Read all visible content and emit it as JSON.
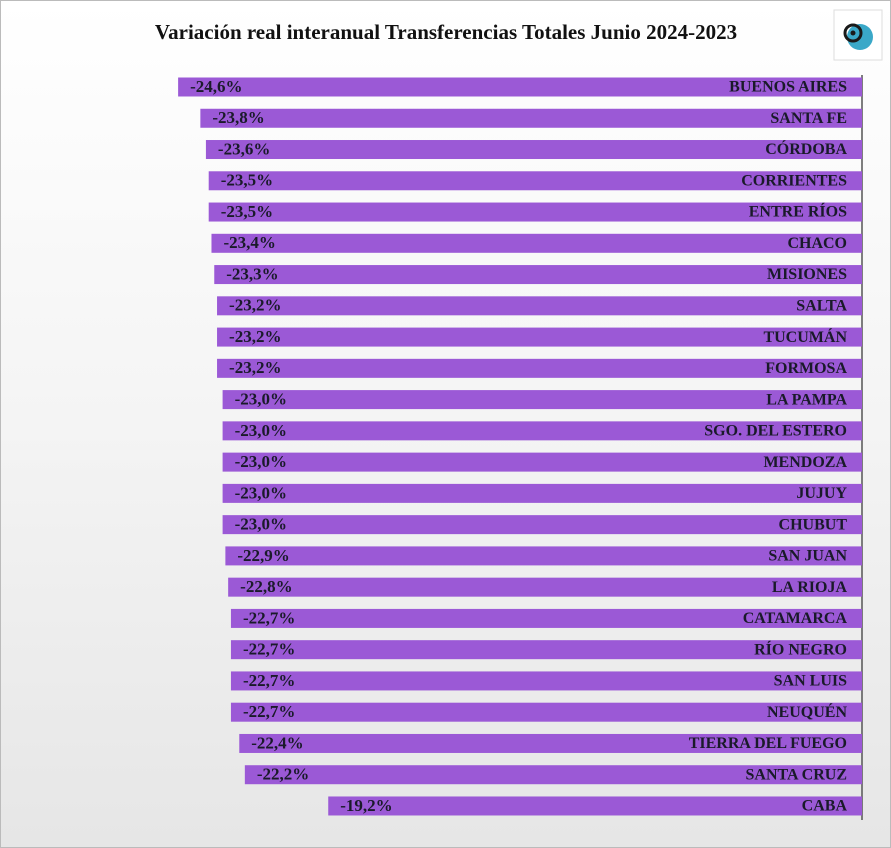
{
  "chart_data": {
    "type": "bar",
    "orientation": "horizontal",
    "title": "Variación real interanual Transferencias Totales Junio 2024-2023",
    "categories": [
      "BUENOS AIRES",
      "SANTA FE",
      "CÓRDOBA",
      "CORRIENTES",
      "ENTRE RÍOS",
      "CHACO",
      "MISIONES",
      "SALTA",
      "TUCUMÁN",
      "FORMOSA",
      "LA PAMPA",
      "SGO. DEL ESTERO",
      "MENDOZA",
      "JUJUY",
      "CHUBUT",
      "SAN JUAN",
      "LA RIOJA",
      "CATAMARCA",
      "RÍO NEGRO",
      "SAN LUIS",
      "NEUQUÉN",
      "TIERRA DEL FUEGO",
      "SANTA CRUZ",
      "CABA"
    ],
    "values": [
      -24.6,
      -23.8,
      -23.6,
      -23.5,
      -23.5,
      -23.4,
      -23.3,
      -23.2,
      -23.2,
      -23.2,
      -23.0,
      -23.0,
      -23.0,
      -23.0,
      -23.0,
      -22.9,
      -22.8,
      -22.7,
      -22.7,
      -22.7,
      -22.7,
      -22.4,
      -22.2,
      -19.2
    ],
    "value_labels": [
      "-24,6%",
      "-23,8%",
      "-23,6%",
      "-23,5%",
      "-23,5%",
      "-23,4%",
      "-23,3%",
      "-23,2%",
      "-23,2%",
      "-23,2%",
      "-23,0%",
      "-23,0%",
      "-23,0%",
      "-23,0%",
      "-23,0%",
      "-22,9%",
      "-22,8%",
      "-22,7%",
      "-22,7%",
      "-22,7%",
      "-22,7%",
      "-22,4%",
      "-22,2%",
      "-19,2%"
    ],
    "color": "#9b59d6",
    "xlim": [
      -25,
      0
    ]
  }
}
